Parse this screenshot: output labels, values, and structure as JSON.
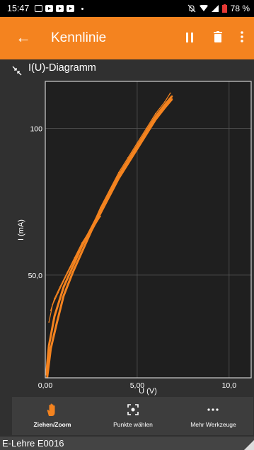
{
  "status": {
    "time": "15:47",
    "battery": "78 %"
  },
  "appbar": {
    "title": "Kennlinie"
  },
  "chart_title": "I(U)-Diagramm",
  "chart_data": {
    "type": "line",
    "xlabel": "U (V)",
    "ylabel": "I (mA)",
    "xlim": [
      0,
      11.2
    ],
    "ylim": [
      15,
      116
    ],
    "x_ticks": [
      "0,00",
      "5,00",
      "10,0"
    ],
    "y_ticks": [
      "50,0",
      "100"
    ],
    "grid": true,
    "color": "#f4831f",
    "series": [
      {
        "x": [
          0.05,
          0.2,
          0.5,
          1.0,
          1.5,
          2.0,
          2.5,
          3.0,
          3.5,
          4.0,
          4.5,
          5.0,
          5.5,
          6.0,
          6.5,
          6.9
        ],
        "y": [
          16,
          26,
          36,
          46,
          53,
          60,
          66,
          72,
          78,
          84,
          89,
          94,
          99,
          104,
          108,
          111
        ]
      },
      {
        "x": [
          0.1,
          0.3,
          0.6,
          1.0,
          1.5,
          2.0,
          2.5,
          3.0,
          3.5,
          4.0,
          4.5,
          5.0,
          5.5,
          6.0,
          6.5,
          6.9
        ],
        "y": [
          15,
          25,
          33,
          43,
          51,
          58,
          65,
          71,
          77,
          83,
          88,
          93,
          98,
          103,
          107,
          110
        ]
      },
      {
        "x": [
          0.3,
          0.5,
          0.8,
          1.2,
          1.6,
          2.0,
          2.5,
          3.0,
          3.5,
          4.0,
          4.5,
          5.0,
          5.5,
          6.0,
          6.5,
          6.8
        ],
        "y": [
          38,
          42,
          46,
          51,
          56,
          61,
          66,
          73,
          79,
          85,
          90,
          95,
          100,
          105,
          109,
          112
        ]
      },
      {
        "x": [
          0.2,
          0.4,
          0.7,
          1.0,
          1.4,
          1.8,
          2.2,
          2.6,
          3.0
        ],
        "y": [
          34,
          40,
          44,
          48,
          53,
          58,
          62,
          66,
          70
        ]
      }
    ]
  },
  "toolbar": {
    "pan_zoom": "Ziehen/Zoom",
    "pick_points": "Punkte wählen",
    "more_tools": "Mehr Werkzeuge"
  },
  "footer": {
    "device": "E-Lehre E0016"
  },
  "icons": [
    "back-arrow-icon",
    "pause-icon",
    "trash-icon",
    "more-vert-icon",
    "collapse-icon",
    "hand-icon",
    "focus-point-icon",
    "more-horiz-icon",
    "resize-handle-icon"
  ]
}
